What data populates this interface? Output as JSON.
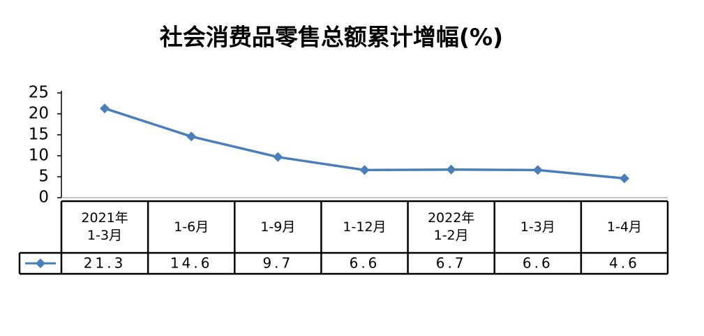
{
  "chart_data": {
    "type": "line",
    "title": "社会消费品零售总额累计增幅(%)",
    "categories": [
      "2021年\n1-3月",
      "1-6月",
      "1-9月",
      "1-12月",
      "2022年\n1-2月",
      "1-3月",
      "1-4月"
    ],
    "values": [
      21.3,
      14.6,
      9.7,
      6.6,
      6.7,
      6.6,
      4.6
    ],
    "color": "#4a7ebb",
    "ylim": [
      0,
      25
    ],
    "yticks": [
      0,
      5,
      10,
      15,
      20,
      25
    ],
    "grid": false
  }
}
